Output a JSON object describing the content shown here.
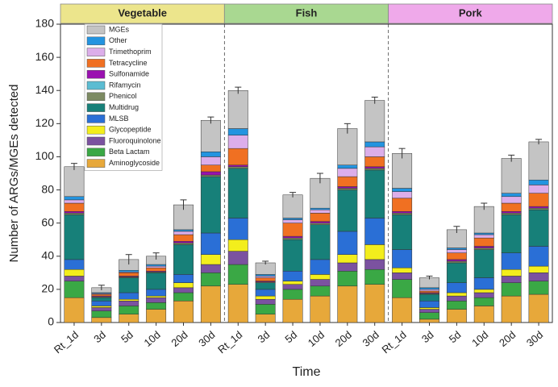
{
  "chart_data": {
    "type": "bar",
    "stacked": true,
    "y_label": "Number of ARGs/MGEs detected",
    "x_label": "Time",
    "ylim": [
      0,
      180
    ],
    "yticks": [
      0,
      20,
      40,
      60,
      80,
      100,
      120,
      140,
      160,
      180
    ],
    "panels": [
      {
        "title": "Vegetable",
        "color": "#ece58c"
      },
      {
        "title": "Fish",
        "color": "#a9d891"
      },
      {
        "title": "Pork",
        "color": "#efa9ea"
      }
    ],
    "categories": [
      "Rt_1d",
      "3d",
      "5d",
      "10d",
      "20d",
      "30d",
      "Rt_1d",
      "3d",
      "5d",
      "10d",
      "20d",
      "30d",
      "Rt_1d",
      "3d",
      "5d",
      "10d",
      "20d",
      "30d"
    ],
    "series": [
      {
        "name": "Aminoglycoside",
        "color": "#e7a83a",
        "values": [
          15,
          3,
          5,
          8,
          13,
          22,
          23,
          5,
          14,
          16,
          22,
          23,
          15,
          2,
          8,
          10,
          16,
          17
        ]
      },
      {
        "name": "Beta Lactam",
        "color": "#3aa845",
        "values": [
          10,
          4,
          5,
          4,
          5,
          8,
          12,
          6,
          6,
          6,
          9,
          9,
          11,
          4,
          5,
          5,
          8,
          8
        ]
      },
      {
        "name": "Fluoroquinolone",
        "color": "#7b52a0",
        "values": [
          3,
          2,
          3,
          3,
          3,
          5,
          8,
          3,
          3,
          4,
          5,
          6,
          4,
          2,
          3,
          3,
          4,
          5
        ]
      },
      {
        "name": "Glycopeptide",
        "color": "#f3ee1c",
        "values": [
          4,
          1,
          1,
          1,
          3,
          6,
          7,
          2,
          2,
          3,
          5,
          9,
          3,
          1,
          2,
          2,
          4,
          4
        ]
      },
      {
        "name": "MLSB",
        "color": "#2a6fd6",
        "values": [
          6,
          3,
          4,
          4,
          5,
          13,
          13,
          4,
          6,
          9,
          14,
          16,
          11,
          4,
          6,
          7,
          10,
          12
        ]
      },
      {
        "name": "Multidrug",
        "color": "#178079",
        "values": [
          27,
          2,
          9,
          10,
          18,
          34,
          30,
          4,
          19,
          21,
          25,
          29,
          21,
          4,
          12,
          17,
          23,
          22
        ]
      },
      {
        "name": "Phenicol",
        "color": "#7c8a62",
        "values": [
          1,
          0.5,
          0.5,
          0.5,
          1,
          1,
          1,
          0.5,
          1,
          1,
          1,
          1,
          1,
          0.5,
          1,
          1,
          1,
          1
        ]
      },
      {
        "name": "Rifamycin",
        "color": "#5bbcd2",
        "values": [
          0,
          0,
          0,
          0,
          0,
          0,
          0,
          0,
          0,
          0,
          0,
          0,
          0,
          0,
          0,
          0,
          0,
          0
        ]
      },
      {
        "name": "Sulfonamide",
        "color": "#9a10b0",
        "values": [
          1,
          0.5,
          0.5,
          0.5,
          1,
          2,
          1,
          0.5,
          1,
          1,
          1,
          1,
          1,
          0.5,
          1,
          1,
          1,
          1
        ]
      },
      {
        "name": "Tetracycline",
        "color": "#f07022",
        "values": [
          5,
          1,
          2,
          2,
          4,
          4,
          10,
          2,
          8,
          5,
          6,
          6,
          8,
          1,
          4,
          5,
          5,
          8
        ]
      },
      {
        "name": "Trimethoprim",
        "color": "#dcaeea",
        "values": [
          2,
          0.5,
          0.5,
          1,
          2,
          5,
          8,
          1,
          2,
          2,
          5,
          6,
          4,
          1,
          2,
          2,
          4,
          5
        ]
      },
      {
        "name": "Other",
        "color": "#2394e0",
        "values": [
          2,
          0.5,
          1,
          1,
          1,
          3,
          4,
          1,
          1,
          1,
          2,
          3,
          2,
          1,
          1,
          1,
          2,
          3
        ]
      },
      {
        "name": "MGEs",
        "color": "#c4c4c4",
        "values": [
          18,
          3,
          6.5,
          5,
          15,
          19,
          23,
          7,
          14,
          18,
          22,
          25,
          21,
          6,
          11,
          16,
          21,
          23
        ]
      }
    ],
    "error": [
      2,
      1.5,
      3,
      2,
      3,
      2,
      2,
      1,
      1.5,
      3,
      3,
      2,
      3,
      1,
      2,
      2,
      2,
      1.5
    ]
  }
}
